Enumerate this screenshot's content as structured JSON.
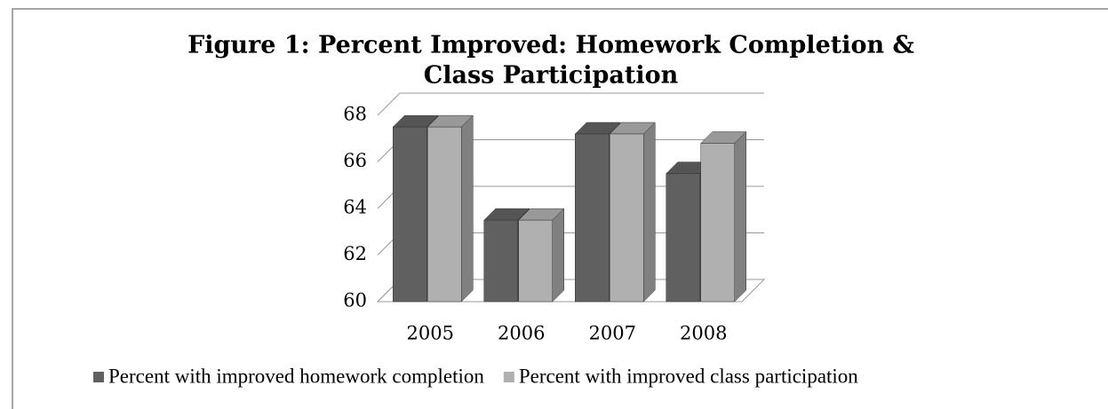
{
  "chart_data": {
    "type": "bar3d",
    "title": "Figure 1: Percent Improved: Homework Completion &",
    "title_line2": "Class Participation",
    "categories": [
      "2005",
      "2006",
      "2007",
      "2008"
    ],
    "series": [
      {
        "name": "Percent with improved homework completion",
        "color": "#606060",
        "values": [
          67.5,
          63.5,
          67.2,
          65.5
        ]
      },
      {
        "name": "Percent with improved class participation",
        "color": "#b0b0b0",
        "values": [
          67.5,
          63.5,
          67.2,
          66.8
        ]
      }
    ],
    "ylim": [
      60,
      68
    ],
    "yticks": [
      60,
      62,
      64,
      66,
      68
    ],
    "grid": true,
    "legend": "bottom"
  }
}
